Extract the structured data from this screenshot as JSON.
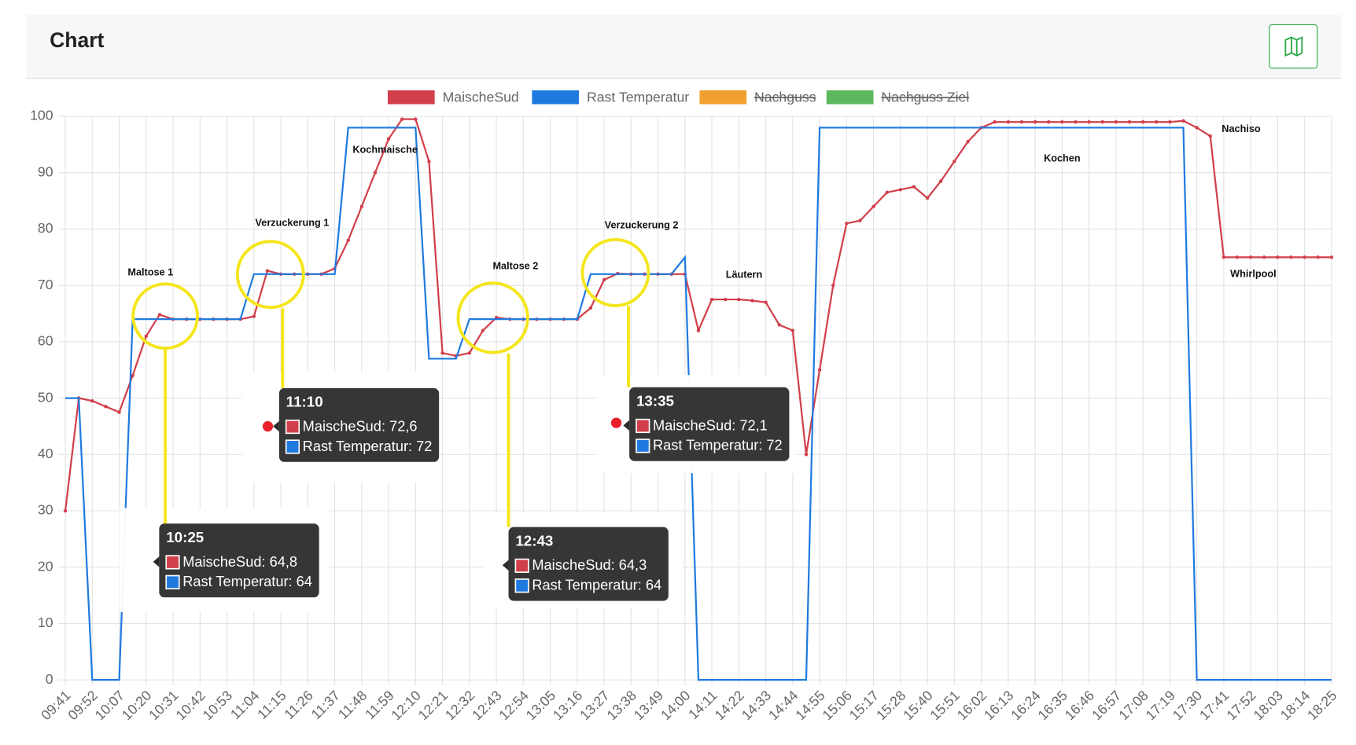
{
  "header": {
    "title": "Chart"
  },
  "chart_data": {
    "type": "line",
    "categories": [
      "09:41",
      null,
      "09:52",
      null,
      "10:07",
      null,
      "10:20",
      null,
      "10:31",
      null,
      "10:42",
      null,
      "10:53",
      null,
      "11:04",
      null,
      "11:15",
      null,
      "11:26",
      null,
      "11:37",
      null,
      "11:48",
      null,
      "11:59",
      null,
      "12:10",
      null,
      "12:21",
      null,
      "12:32",
      null,
      "12:43",
      null,
      "12:54",
      null,
      "13:05",
      null,
      "13:16",
      null,
      "13:27",
      null,
      "13:38",
      null,
      "13:49",
      null,
      "14:00",
      null,
      "14:11",
      null,
      "14:22",
      null,
      "14:33",
      null,
      "14:44",
      null,
      "14:55",
      null,
      "15:06",
      null,
      "15:17",
      null,
      "15:28",
      null,
      "15:40",
      null,
      "15:51",
      null,
      "16:02",
      null,
      "16:13",
      null,
      "16:24",
      null,
      "16:35",
      null,
      "16:46",
      null,
      "16:57",
      null,
      "17:08",
      null,
      "17:19",
      null,
      "17:30",
      null,
      "17:41",
      null,
      "17:52",
      null,
      "18:03",
      null,
      "18:14",
      null,
      "18:25"
    ],
    "series": [
      {
        "name": "MaischeSud",
        "color": "#d13f4a",
        "values": [
          30,
          50,
          49.5,
          48.5,
          47.5,
          54,
          61,
          64.8,
          64,
          64,
          64,
          64,
          64,
          64,
          64.5,
          72.6,
          72,
          72,
          72,
          72,
          73,
          78,
          84,
          90,
          96,
          99.5,
          99.5,
          92,
          58,
          57.5,
          58,
          62,
          64.3,
          64,
          64,
          64,
          64,
          64,
          64,
          66,
          71,
          72.1,
          72,
          72,
          72,
          72,
          72,
          62,
          67.5,
          67.5,
          67.5,
          67.3,
          67,
          63,
          62,
          40,
          55,
          70,
          81,
          81.5,
          84,
          86.5,
          87,
          87.5,
          85.5,
          88.5,
          92,
          95.5,
          98,
          99,
          99,
          99,
          99,
          99,
          99,
          99,
          99,
          99,
          99,
          99,
          99,
          99,
          99,
          99.2,
          98,
          96.5,
          75,
          75,
          75,
          75,
          75,
          75,
          75,
          75,
          75
        ]
      },
      {
        "name": "Rast Temperatur",
        "color": "#1f7ae0",
        "values": [
          50,
          50,
          0,
          0,
          0,
          64,
          64,
          64,
          64,
          64,
          64,
          64,
          64,
          64,
          72,
          72,
          72,
          72,
          72,
          72,
          72,
          98,
          98,
          98,
          98,
          98,
          98,
          57,
          57,
          57,
          64,
          64,
          64,
          64,
          64,
          64,
          64,
          64,
          64,
          72,
          72,
          72,
          72,
          72,
          72,
          72,
          75,
          0,
          0,
          0,
          0,
          0,
          0,
          0,
          0,
          0,
          98,
          98,
          98,
          98,
          98,
          98,
          98,
          98,
          98,
          98,
          98,
          98,
          98,
          98,
          98,
          98,
          98,
          98,
          98,
          98,
          98,
          98,
          98,
          98,
          98,
          98,
          98,
          98,
          0,
          0,
          0,
          0,
          0,
          0,
          0,
          0,
          0,
          0,
          0
        ]
      },
      {
        "name": "Nachguss",
        "color": "#f0a030",
        "hidden": true
      },
      {
        "name": "Nachguss Ziel",
        "color": "#5cb85c",
        "hidden": true
      }
    ],
    "ylim": [
      0,
      100
    ],
    "yticks": [
      0,
      10,
      20,
      30,
      40,
      50,
      60,
      70,
      80,
      90,
      100
    ],
    "grid": true,
    "annotations": [
      "Maltose 1",
      "Verzuckerung 1",
      "Kochmaische",
      "Maltose 2",
      "Verzuckerung 2",
      "Läutern",
      "Kochen",
      "Nachiso",
      "Whirlpool"
    ],
    "tooltips": [
      {
        "title": "10:25",
        "items": [
          "MaischeSud: 64,8",
          "Rast Temperatur: 64"
        ]
      },
      {
        "title": "11:10",
        "items": [
          "MaischeSud: 72,6",
          "Rast Temperatur: 72"
        ]
      },
      {
        "title": "12:43",
        "items": [
          "MaischeSud: 64,3",
          "Rast Temperatur: 64"
        ]
      },
      {
        "title": "13:35",
        "items": [
          "MaischeSud: 72,1",
          "Rast Temperatur: 72"
        ]
      }
    ]
  }
}
